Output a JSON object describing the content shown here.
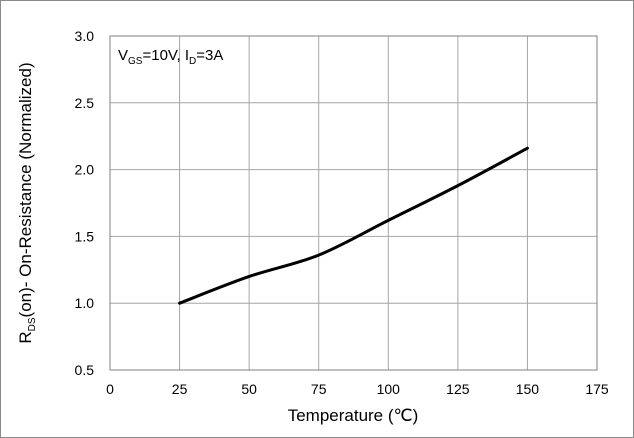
{
  "chart_data": {
    "type": "line",
    "x": [
      25,
      50,
      75,
      100,
      125,
      150
    ],
    "series": [
      {
        "values": [
          1.0,
          1.2,
          1.36,
          1.62,
          1.88,
          2.16
        ]
      }
    ],
    "xlim": [
      0,
      175
    ],
    "ylim": [
      0.5,
      3.0
    ],
    "xticks": [
      "0",
      "25",
      "50",
      "75",
      "100",
      "125",
      "150",
      "175"
    ],
    "yticks": [
      "0.5",
      "1.0",
      "1.5",
      "2.0",
      "2.5",
      "3.0"
    ],
    "xlabel": "Temperature (℃)",
    "ylabel": {
      "main": "R",
      "sub": "DS",
      "rest": "(on)- On-Resistance (Normalized)"
    },
    "annotation": {
      "v": "V",
      "v_sub": "GS",
      "v_rest": "=10V,  I",
      "i_sub": "D",
      "i_rest": "=3A"
    },
    "grid": true,
    "line_color": "#000000",
    "grid_color": "#a6a6a6"
  }
}
